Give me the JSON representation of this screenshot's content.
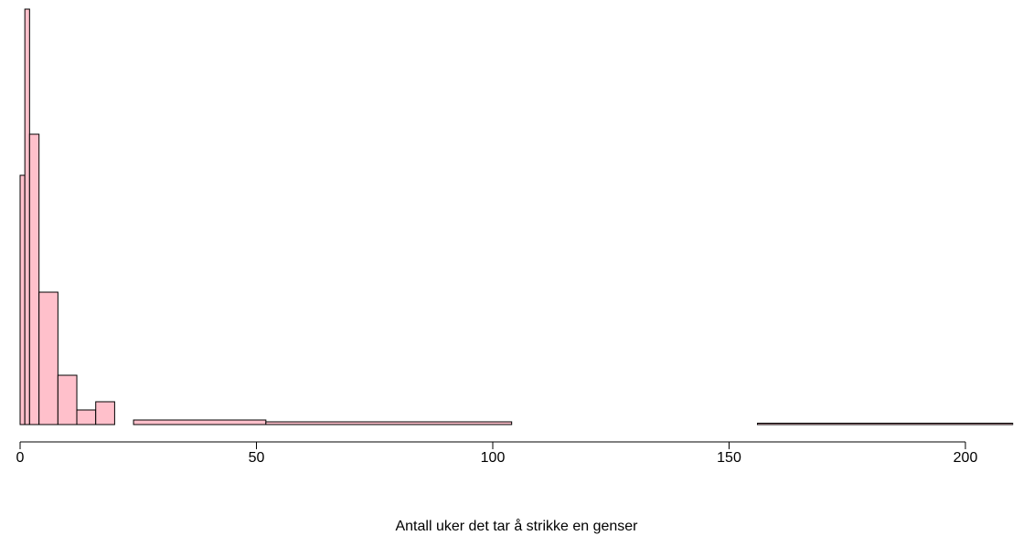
{
  "chart_data": {
    "type": "histogram",
    "xlabel": "Antall uker det tar å strikke en genser",
    "bins": [
      0,
      1,
      2,
      4,
      8,
      12,
      16,
      20,
      24,
      52,
      104,
      156,
      210
    ],
    "values": [
      273,
      455,
      318,
      145,
      54,
      16,
      25,
      0,
      5,
      3,
      0,
      1.5
    ],
    "color": "#ffc0cb",
    "xlim": [
      0,
      210
    ],
    "xticks": [
      0,
      50,
      100,
      150,
      200
    ],
    "ylim": [
      0,
      455
    ]
  }
}
